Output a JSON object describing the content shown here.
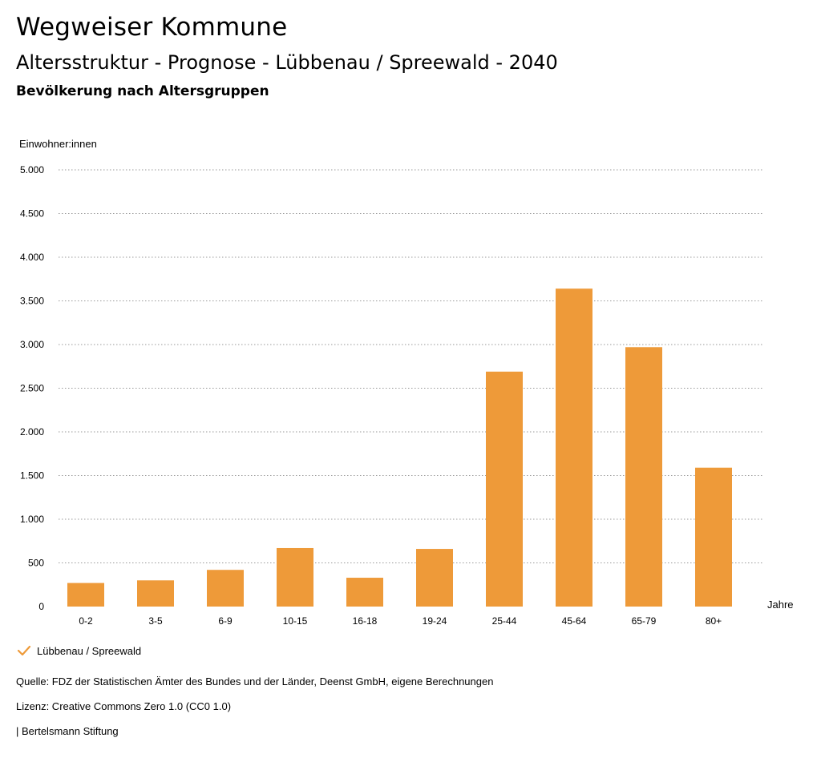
{
  "header": {
    "title": "Wegweiser Kommune",
    "subtitle": "Altersstruktur - Prognose - Lübbenau / Spreewald - 2040",
    "caption": "Bevölkerung nach Altersgruppen"
  },
  "colors": {
    "bar": "#ee9a39",
    "grid": "#999999",
    "check": "#ee9a39"
  },
  "chart_data": {
    "type": "bar",
    "ylabel": "Einwohner:innen",
    "xlabel": "Jahre",
    "ylim": [
      0,
      5000
    ],
    "yticks": [
      0,
      500,
      1000,
      1500,
      2000,
      2500,
      3000,
      3500,
      4000,
      4500,
      5000
    ],
    "ytick_labels": [
      "0",
      "500",
      "1.000",
      "1.500",
      "2.000",
      "2.500",
      "3.000",
      "3.500",
      "4.000",
      "4.500",
      "5.000"
    ],
    "grid": true,
    "legend_placement": "bottom-left",
    "categories": [
      "0-2",
      "3-5",
      "6-9",
      "10-15",
      "16-18",
      "19-24",
      "25-44",
      "45-64",
      "65-79",
      "80+"
    ],
    "series": [
      {
        "name": "Lübbenau / Spreewald",
        "values": [
          270,
          300,
          420,
          670,
          330,
          660,
          2690,
          3640,
          2970,
          1590
        ]
      }
    ]
  },
  "legend": {
    "label": "Lübbenau / Spreewald"
  },
  "footer": {
    "source": "Quelle: FDZ der Statistischen Ämter des Bundes und der Länder, Deenst GmbH, eigene Berechnungen",
    "license": "Lizenz: Creative Commons Zero 1.0 (CC0 1.0)",
    "publisher": "| Bertelsmann Stiftung"
  }
}
